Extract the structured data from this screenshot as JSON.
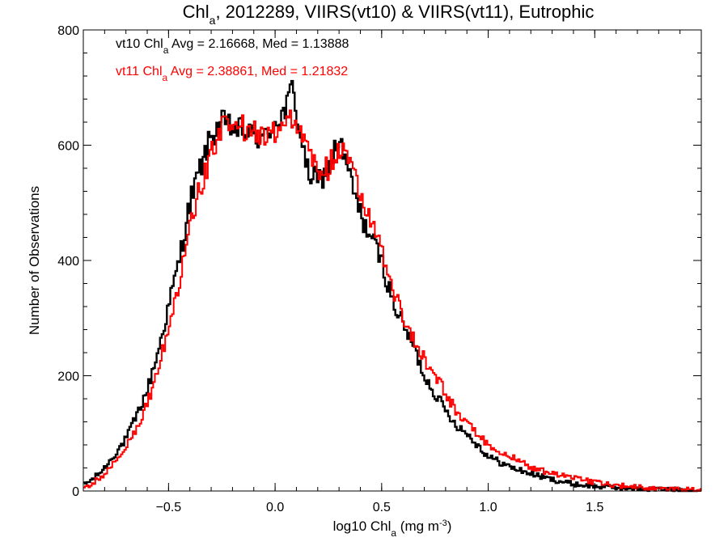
{
  "chart_data": {
    "type": "histogram",
    "title": {
      "main": "Chl",
      "sub": "a",
      "rest": ", 2012289, VIIRS(vt10) & VIIRS(vt11), Eutrophic"
    },
    "xlabel": {
      "main": "log10 Chl",
      "sub": "a",
      "rest": " (mg m",
      "sup": "-3",
      "end": ")"
    },
    "ylabel": "Number of Observations",
    "xlim": [
      -0.9,
      2.0
    ],
    "ylim": [
      0,
      800
    ],
    "xticks": [
      -0.5,
      0.0,
      0.5,
      1.0,
      1.5
    ],
    "xtick_labels": [
      "−0.5",
      "0.0",
      "0.5",
      "1.0",
      "1.5"
    ],
    "xminor_step": 0.1,
    "yticks": [
      0,
      200,
      400,
      600,
      800
    ],
    "ytick_labels": [
      "0",
      "200",
      "400",
      "600",
      "800"
    ],
    "yminor_step": 40,
    "grid": false,
    "series": [
      {
        "name": "vt10",
        "color": "#000000",
        "annotation": {
          "prefix": "vt10 Chl",
          "sub": "a",
          "rest": " Avg = 2.16668, Med = 1.13888"
        },
        "x": [
          -0.9,
          -0.85,
          -0.8,
          -0.75,
          -0.7,
          -0.65,
          -0.6,
          -0.55,
          -0.5,
          -0.45,
          -0.4,
          -0.35,
          -0.3,
          -0.25,
          -0.2,
          -0.15,
          -0.1,
          -0.05,
          0.0,
          0.05,
          0.08,
          0.1,
          0.15,
          0.2,
          0.25,
          0.3,
          0.35,
          0.4,
          0.45,
          0.5,
          0.55,
          0.6,
          0.65,
          0.7,
          0.75,
          0.8,
          0.85,
          0.9,
          0.95,
          1.0,
          1.1,
          1.2,
          1.3,
          1.4,
          1.5,
          1.6,
          1.7,
          1.8,
          1.9,
          2.0
        ],
        "y": [
          10,
          22,
          40,
          65,
          90,
          130,
          175,
          240,
          320,
          400,
          500,
          560,
          615,
          640,
          630,
          625,
          615,
          610,
          640,
          660,
          700,
          660,
          555,
          535,
          560,
          610,
          545,
          480,
          440,
          400,
          330,
          290,
          250,
          200,
          170,
          140,
          115,
          100,
          80,
          60,
          42,
          30,
          20,
          12,
          8,
          6,
          4,
          3,
          2,
          1
        ]
      },
      {
        "name": "vt11",
        "color": "#ff0000",
        "annotation": {
          "prefix": "vt11 Chl",
          "sub": "a",
          "rest": " Avg = 2.38861, Med = 1.21832"
        },
        "x": [
          -0.9,
          -0.85,
          -0.8,
          -0.75,
          -0.7,
          -0.65,
          -0.6,
          -0.55,
          -0.5,
          -0.45,
          -0.4,
          -0.35,
          -0.3,
          -0.25,
          -0.2,
          -0.15,
          -0.1,
          -0.05,
          0.0,
          0.05,
          0.08,
          0.1,
          0.15,
          0.2,
          0.25,
          0.3,
          0.35,
          0.4,
          0.45,
          0.5,
          0.55,
          0.6,
          0.65,
          0.7,
          0.75,
          0.8,
          0.85,
          0.9,
          0.95,
          1.0,
          1.1,
          1.2,
          1.3,
          1.4,
          1.5,
          1.6,
          1.7,
          1.8,
          1.9,
          2.0
        ],
        "y": [
          5,
          15,
          30,
          50,
          75,
          110,
          150,
          210,
          285,
          360,
          450,
          530,
          585,
          630,
          635,
          630,
          620,
          615,
          625,
          645,
          650,
          640,
          590,
          555,
          560,
          600,
          570,
          520,
          470,
          420,
          355,
          305,
          265,
          230,
          200,
          170,
          140,
          120,
          100,
          80,
          60,
          42,
          30,
          22,
          15,
          10,
          7,
          5,
          3,
          2
        ]
      }
    ]
  }
}
